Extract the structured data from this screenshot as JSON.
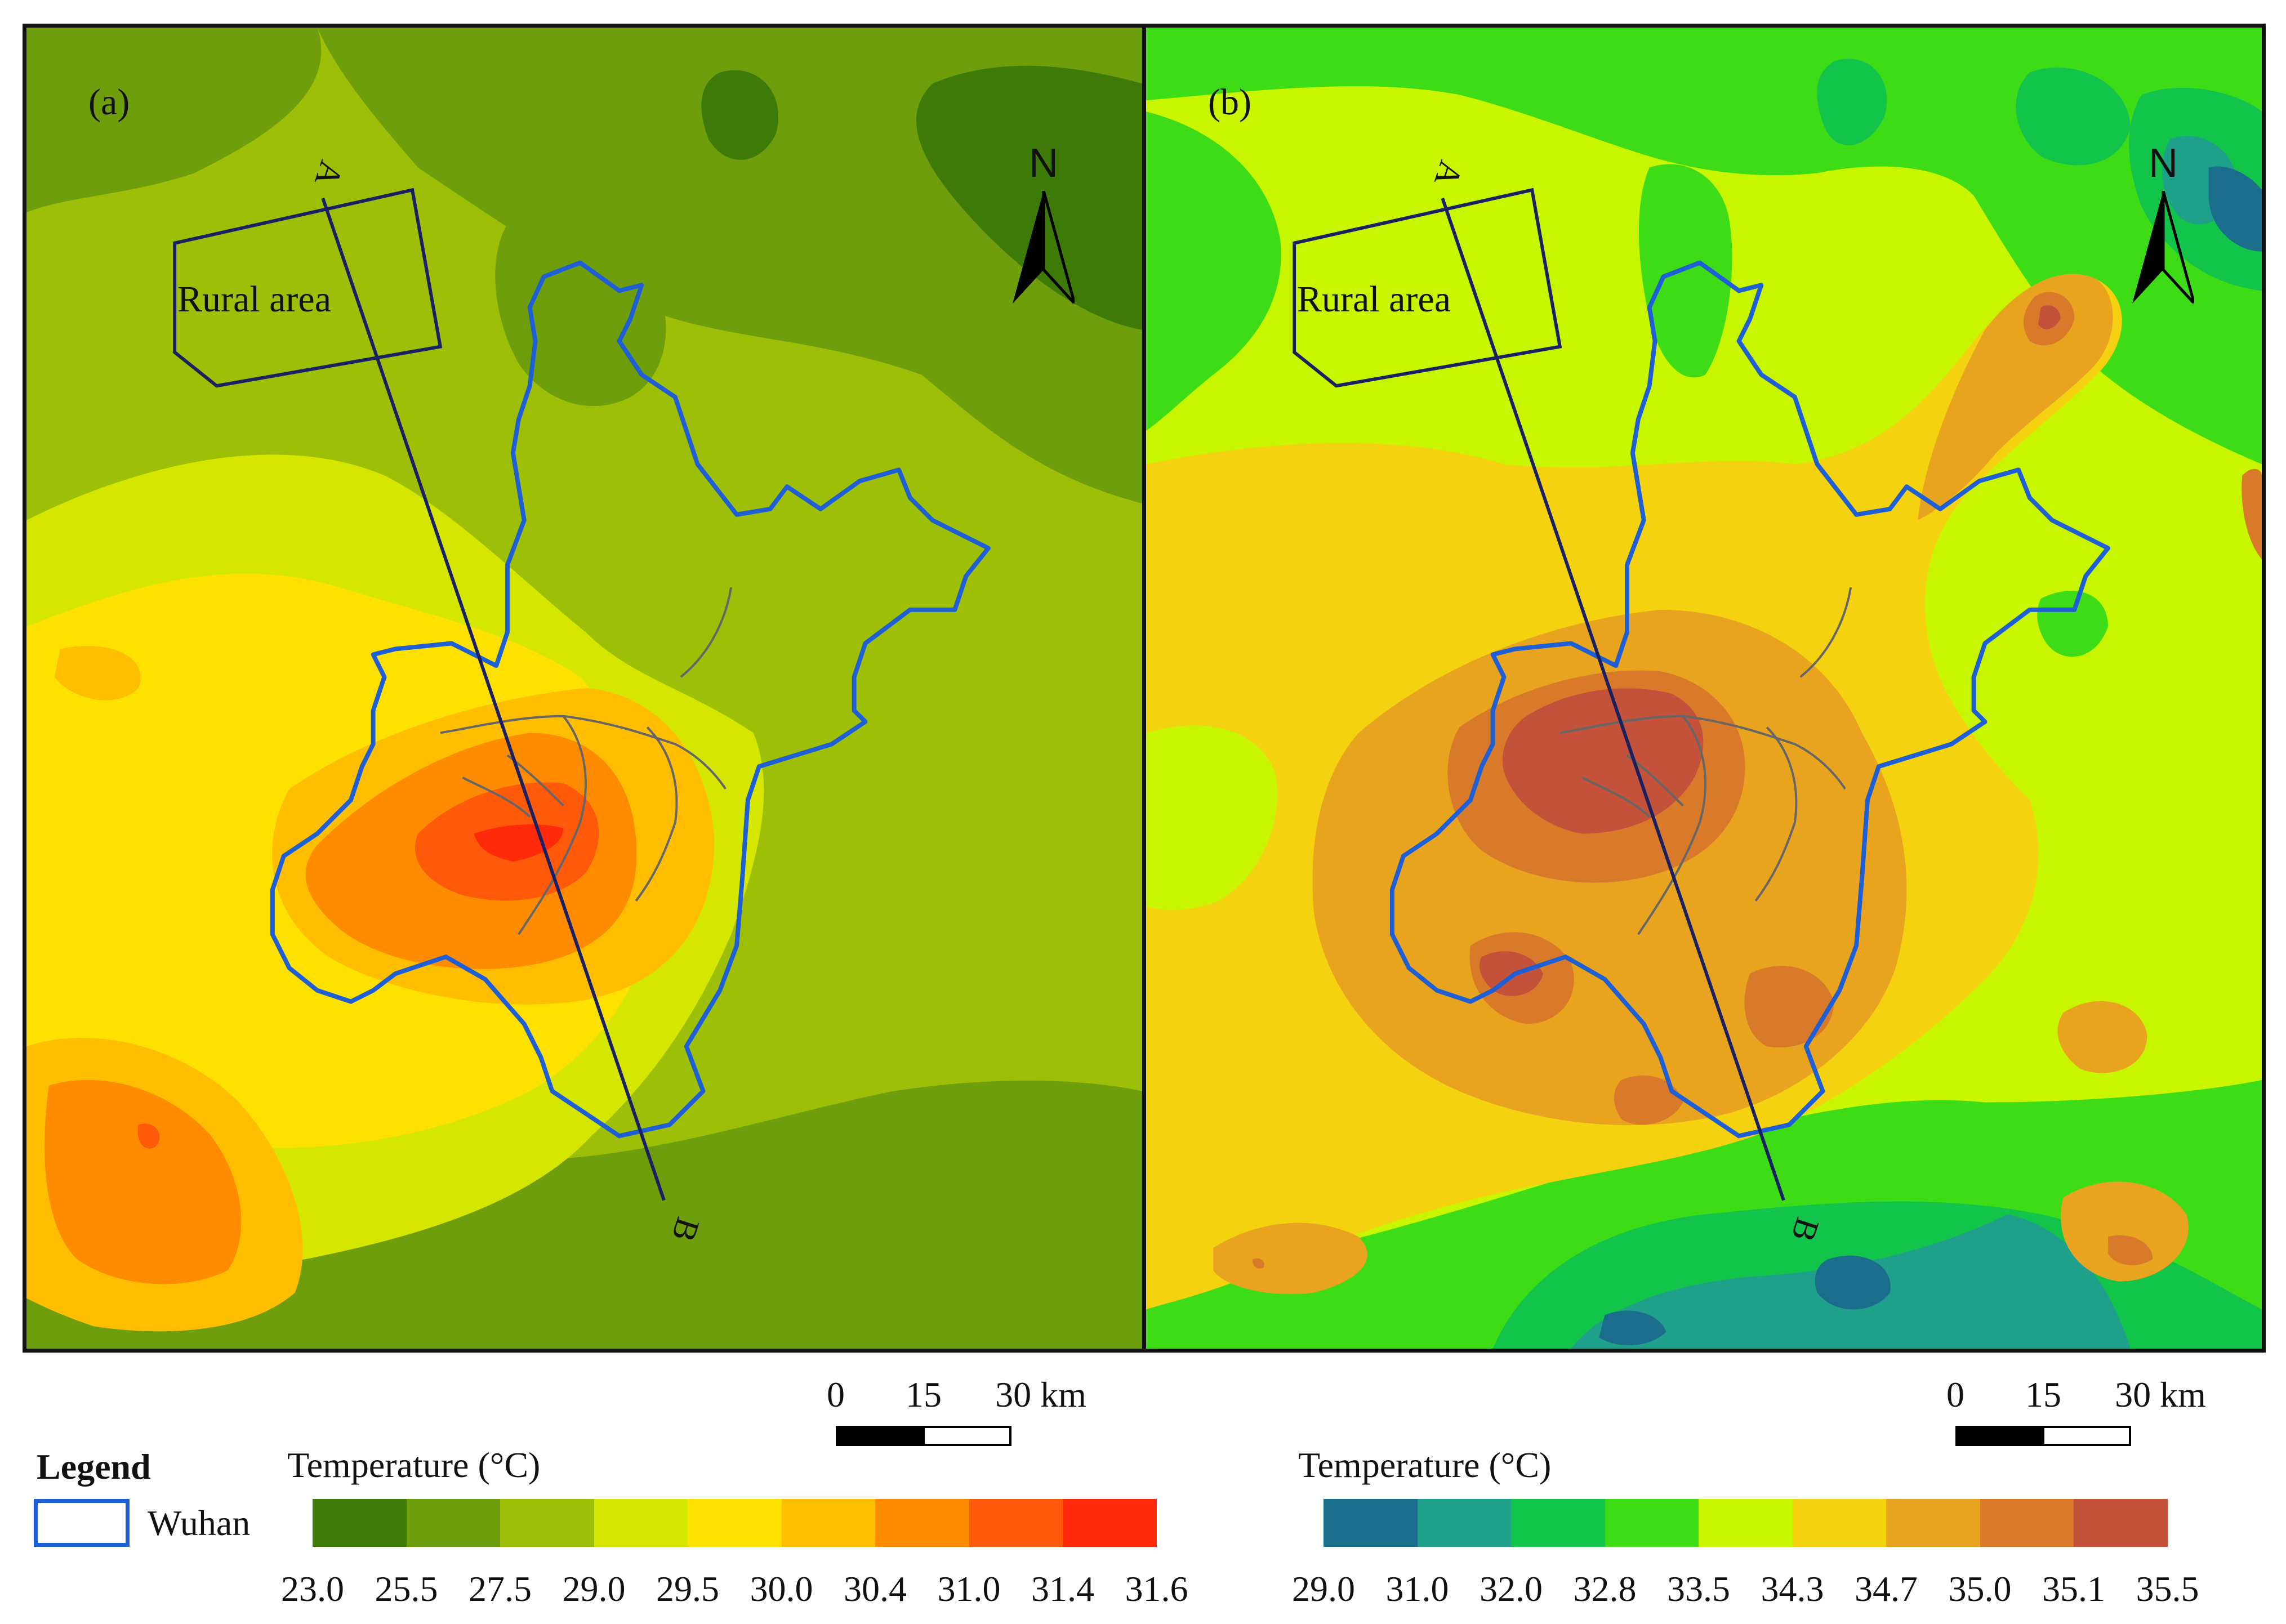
{
  "panels": [
    {
      "letter": "(a)",
      "rural_label": "Rural area",
      "north_label": "N",
      "line_start_label": "A",
      "line_end_label": "B",
      "colors": [
        "#3d7a08",
        "#6f9e0c",
        "#9dbf08",
        "#d5e600",
        "#ffe100",
        "#ffbf00",
        "#ff8c00",
        "#ff5a0a",
        "#ff2a0a"
      ]
    },
    {
      "letter": "(b)",
      "rural_label": "Rural area",
      "north_label": "N",
      "line_start_label": "A",
      "line_end_label": "B",
      "colors": [
        "#1a6e8c",
        "#1fa08a",
        "#12c44a",
        "#3ddc16",
        "#c8f500",
        "#f5d20f",
        "#e8a41e",
        "#d97a2b",
        "#c4513a"
      ]
    }
  ],
  "scalebar": {
    "labels": [
      "0",
      "15",
      "30 km"
    ]
  },
  "legend": {
    "title": "Legend",
    "item_label": "Wuhan",
    "item_color": "#1f5fd6"
  },
  "colorbar_a": {
    "title": "Temperature (°C)",
    "ticks": [
      "23.0",
      "25.5",
      "27.5",
      "29.0",
      "29.5",
      "30.0",
      "30.4",
      "31.0",
      "31.4",
      "31.6"
    ]
  },
  "colorbar_b": {
    "title": "Temperature (°C)",
    "ticks": [
      "29.0",
      "31.0",
      "32.0",
      "32.8",
      "33.5",
      "34.3",
      "34.7",
      "35.0",
      "35.1",
      "35.5"
    ]
  }
}
